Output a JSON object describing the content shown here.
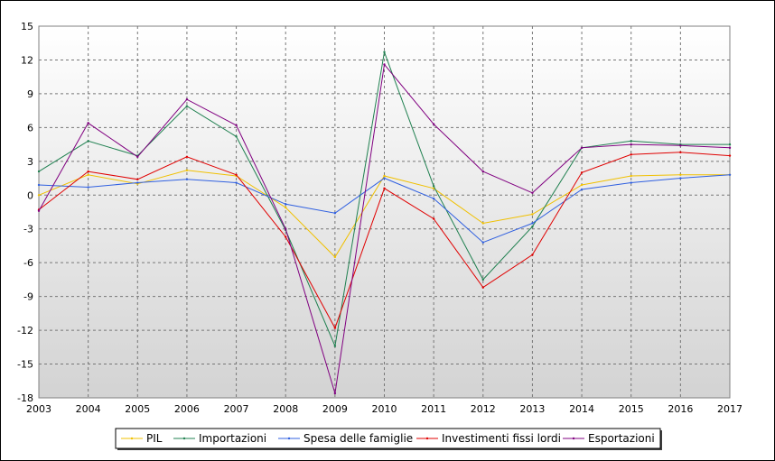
{
  "chart_data": {
    "type": "line",
    "title": "",
    "xlabel": "",
    "ylabel": "",
    "ylim": [
      -18,
      15
    ],
    "yticks": [
      15,
      12,
      9,
      6,
      3,
      0,
      -3,
      -6,
      -9,
      -12,
      -15,
      -18
    ],
    "grid": true,
    "legend_position": "bottom-center",
    "categories": [
      "2003",
      "2004",
      "2005",
      "2006",
      "2007",
      "2008",
      "2009",
      "2010",
      "2011",
      "2012",
      "2013",
      "2014",
      "2015",
      "2016",
      "2017"
    ],
    "series": [
      {
        "name": "PIL",
        "color": "#f0c000",
        "values": [
          0.0,
          1.8,
          1.0,
          2.2,
          1.7,
          -1.1,
          -5.5,
          1.7,
          0.6,
          -2.5,
          -1.7,
          0.9,
          1.7,
          1.8,
          1.8
        ]
      },
      {
        "name": "Importazioni",
        "color": "#208050",
        "values": [
          2.1,
          4.8,
          3.5,
          7.9,
          5.2,
          -3.1,
          -13.4,
          12.7,
          0.8,
          -7.5,
          -2.8,
          4.2,
          4.8,
          4.5,
          4.5
        ]
      },
      {
        "name": "Spesa delle famiglie",
        "color": "#3060e0",
        "values": [
          0.9,
          0.7,
          1.1,
          1.4,
          1.1,
          -0.8,
          -1.6,
          1.5,
          -0.3,
          -4.2,
          -2.5,
          0.5,
          1.1,
          1.5,
          1.8
        ]
      },
      {
        "name": "Investimenti fissi lordi",
        "color": "#e00000",
        "values": [
          -1.3,
          2.1,
          1.4,
          3.4,
          1.8,
          -3.7,
          -11.8,
          0.6,
          -2.1,
          -8.2,
          -5.3,
          2.0,
          3.6,
          3.8,
          3.5
        ]
      },
      {
        "name": "Esportazioni",
        "color": "#800080",
        "values": [
          -1.4,
          6.4,
          3.4,
          8.5,
          6.2,
          -3.0,
          -17.6,
          11.6,
          6.3,
          2.1,
          0.2,
          4.2,
          4.5,
          4.4,
          4.2
        ]
      }
    ]
  }
}
